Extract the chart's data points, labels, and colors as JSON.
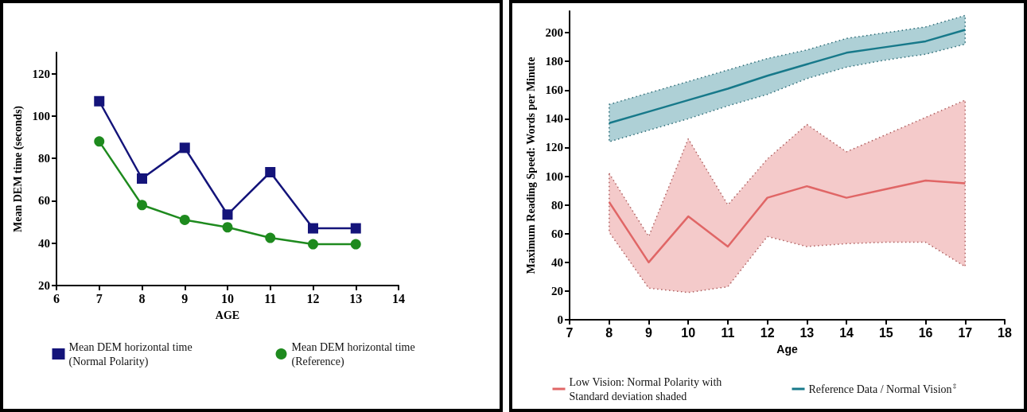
{
  "chart_data": [
    {
      "type": "line",
      "xlabel": "AGE",
      "ylabel": "Mean DEM time (seconds)",
      "x": [
        7,
        8,
        9,
        10,
        11,
        12,
        13
      ],
      "xlim": [
        6,
        14
      ],
      "xticks": [
        6,
        7,
        8,
        9,
        10,
        11,
        12,
        13,
        14
      ],
      "ylim": [
        20,
        130
      ],
      "yticks": [
        20,
        40,
        60,
        80,
        100,
        120
      ],
      "grid": false,
      "legend": "bottom",
      "series": [
        {
          "name": "Mean DEM horizontal time (Normal Polarity)",
          "color": "#14147a",
          "marker": "square",
          "values": [
            107,
            70.5,
            85,
            53.5,
            73.5,
            47,
            47
          ]
        },
        {
          "name": "Mean DEM horizontal time (Reference)",
          "color": "#1e8a1e",
          "marker": "circle",
          "values": [
            88,
            58,
            51,
            47.5,
            42.5,
            39.5,
            39.5
          ]
        }
      ]
    },
    {
      "type": "line",
      "xlabel": "Age",
      "ylabel": "Maximum Reading Speed: Words per Minute",
      "x": [
        8,
        9,
        10,
        11,
        12,
        13,
        14,
        15,
        16,
        17
      ],
      "xlim": [
        7,
        18
      ],
      "xticks": [
        7,
        8,
        9,
        10,
        11,
        12,
        13,
        14,
        15,
        16,
        17,
        18
      ],
      "ylim": [
        0,
        215
      ],
      "yticks": [
        0,
        20,
        40,
        60,
        80,
        100,
        120,
        140,
        160,
        180,
        200
      ],
      "grid": false,
      "legend": "bottom",
      "marker": "none",
      "series": [
        {
          "name": "Low Vision: Normal Polarity with Standard deviation shaded",
          "color": "#e06666",
          "values": [
            82,
            40,
            72,
            51,
            85,
            93,
            85,
            91,
            97,
            95
          ],
          "lower": [
            61,
            22,
            19,
            23,
            58,
            51,
            53,
            54,
            54,
            37
          ],
          "upper": [
            102,
            58,
            126,
            80,
            112,
            136,
            117,
            129,
            141,
            153
          ]
        },
        {
          "name": "Reference Data / Normal Vision$^{‡}$",
          "color": "#17798a",
          "values": [
            137,
            145,
            153,
            161,
            170,
            178,
            186,
            190,
            194,
            202
          ],
          "lower": [
            124,
            132,
            140,
            149,
            157,
            168,
            176,
            181,
            185,
            192
          ],
          "upper": [
            150,
            158,
            166,
            174,
            182,
            188,
            196,
            200,
            204,
            212
          ]
        }
      ]
    }
  ]
}
